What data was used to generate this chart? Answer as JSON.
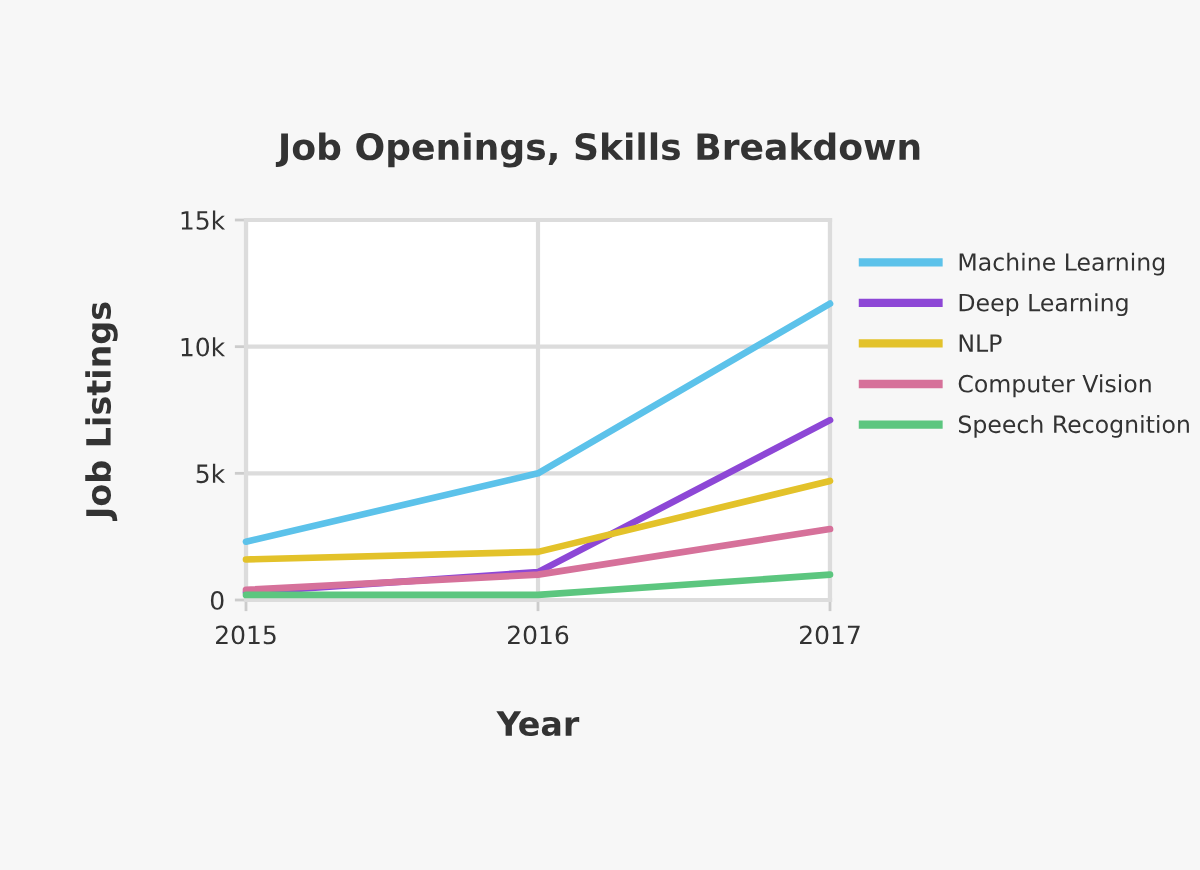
{
  "chart_data": {
    "type": "line",
    "title": "Job Openings, Skills Breakdown",
    "xlabel": "Year",
    "ylabel": "Job Listings",
    "x": [
      2015,
      2016,
      2017
    ],
    "xlim": [
      2015,
      2017
    ],
    "xticks": [
      2015,
      2016,
      2017
    ],
    "ylim": [
      0,
      15000
    ],
    "yticks": [
      0,
      {
        "value": 5000,
        "label": "5k"
      },
      {
        "value": 10000,
        "label": "10k"
      },
      {
        "value": 15000,
        "label": "15k"
      }
    ],
    "grid": true,
    "legend": "right",
    "series": [
      {
        "name": "Machine Learning",
        "color": "#5cc2ea",
        "values": [
          2300,
          5000,
          11700
        ]
      },
      {
        "name": "Deep Learning",
        "color": "#8d47d6",
        "values": [
          300,
          1100,
          7100
        ]
      },
      {
        "name": "NLP",
        "color": "#e3c22a",
        "values": [
          1600,
          1900,
          4700
        ]
      },
      {
        "name": "Computer Vision",
        "color": "#d6719a",
        "values": [
          400,
          1000,
          2800
        ]
      },
      {
        "name": "Speech Recognition",
        "color": "#5cc67f",
        "values": [
          200,
          200,
          1000
        ]
      }
    ]
  }
}
